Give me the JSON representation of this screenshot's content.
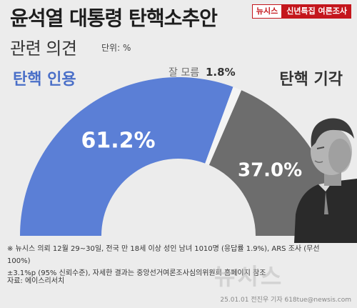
{
  "header": {
    "title_line1": "윤석열 대통령 탄핵소추안",
    "title_line2": "관련 의견",
    "unit_label": "단위: %",
    "badge_brand": "뉴시스",
    "badge_series": "신년특집 여론조사"
  },
  "chart_data": {
    "type": "pie",
    "style": "half-donut",
    "slices": [
      {
        "label": "탄핵 인용",
        "value": 61.2,
        "display": "61.2%",
        "color": "#5b7fd6"
      },
      {
        "label": "잘 모름",
        "value": 1.8,
        "display": "1.8%",
        "color": "#f4f4f4"
      },
      {
        "label": "탄핵 기각",
        "value": 37.0,
        "display": "37.0%",
        "color": "#6d6d6d"
      }
    ]
  },
  "colors": {
    "accent": "#5b7fd6",
    "accent_label": "#4a6fc8",
    "reject": "#6d6d6d",
    "brand_red": "#c4161c"
  },
  "footer": {
    "note_line1": "※ 뉴시스 의뢰 12월 29~30일, 전국 만 18세 이상 성인 남녀 1010명 (응답률 1.9%), ARS 조사 (무선 100%)",
    "note_line2": "±3.1%p (95% 신뢰수준), 자세한 결과는 중앙선거여론조사심의위원회 홈페이지 참조",
    "source": "자료: 에이스리서치",
    "watermark": "뉴시스",
    "credit": "25.01.01 전진우 기자 618tue@newsis.com"
  },
  "icons": {
    "portrait": "person-portrait-image"
  }
}
